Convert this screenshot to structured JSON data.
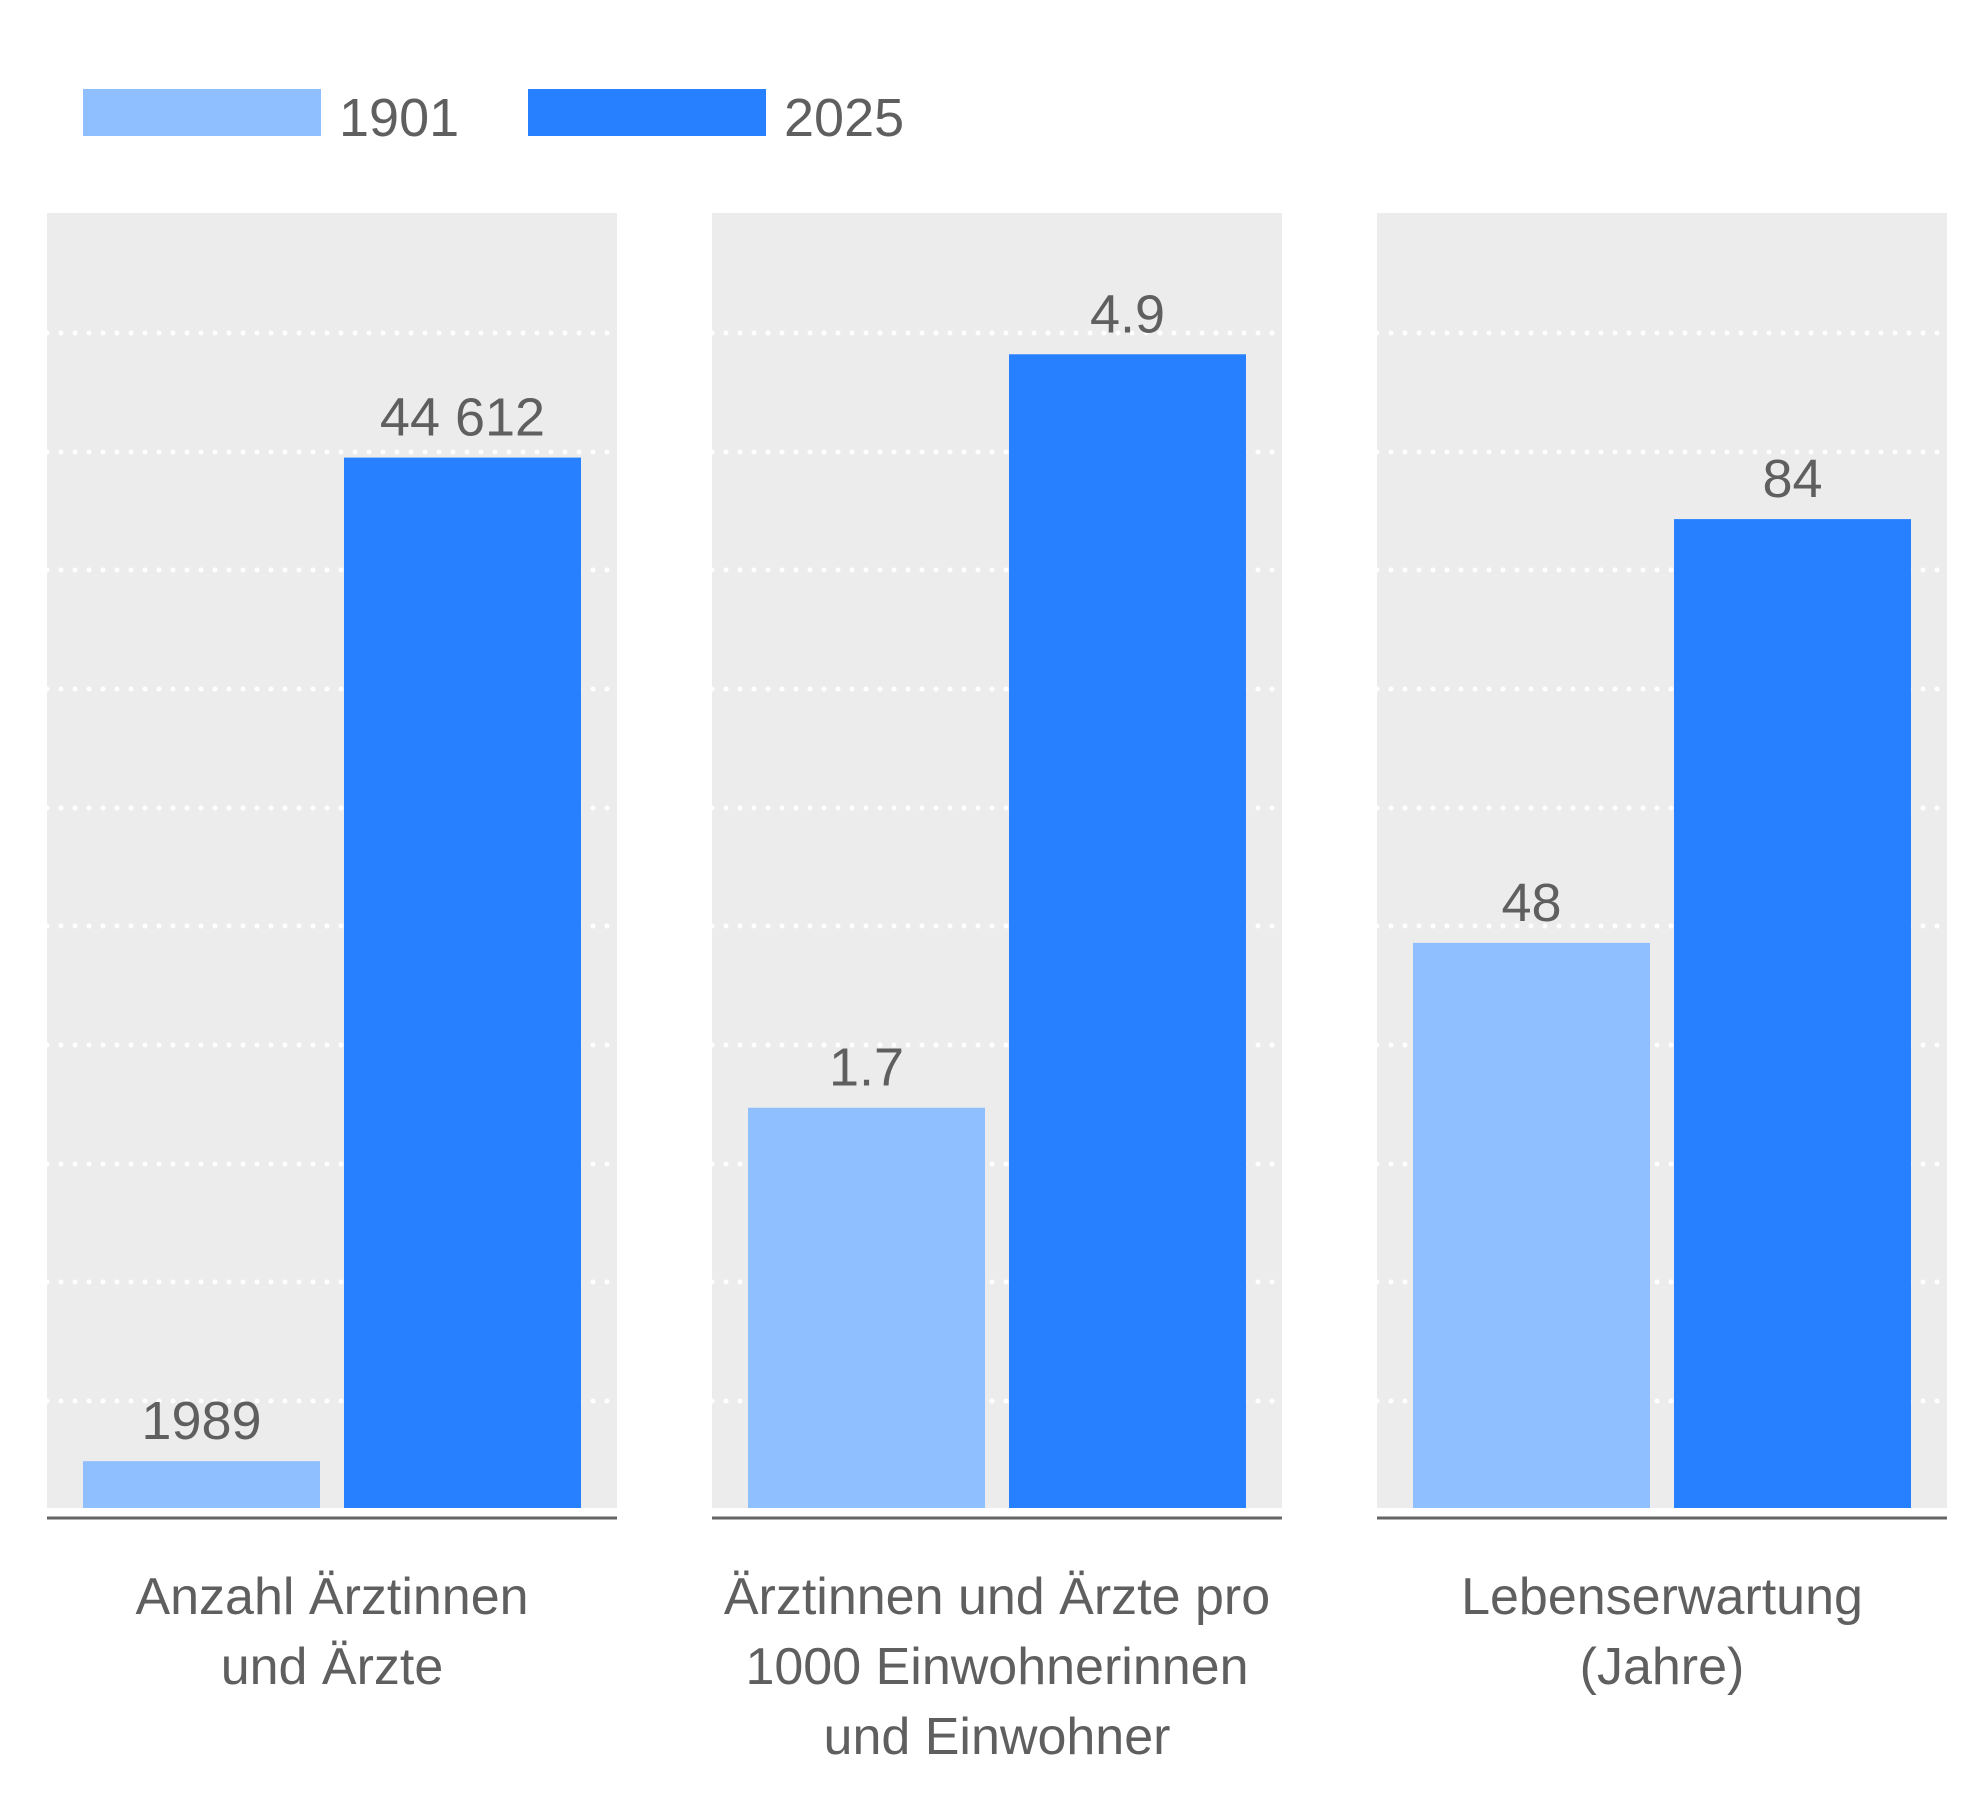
{
  "chart_data": {
    "type": "bar",
    "legend": {
      "placement": "top-left",
      "entries": [
        {
          "name": "1901",
          "color": "#8fbfff"
        },
        {
          "name": "2025",
          "color": "#2780ff"
        }
      ]
    },
    "grid": true,
    "panel_background": "#ececec",
    "panels": [
      {
        "category": [
          "Anzahl Ärztinnen",
          "und Ärzte"
        ],
        "ylim": [
          0,
          55000
        ],
        "series": [
          {
            "name": "1901",
            "value": 1989,
            "label": "1989"
          },
          {
            "name": "2025",
            "value": 44612,
            "label": "44 612"
          }
        ]
      },
      {
        "category": [
          "Ärztinnen und Ärzte pro",
          "1000 Einwohnerinnen",
          "und Einwohner"
        ],
        "ylim": [
          0,
          5.5
        ],
        "series": [
          {
            "name": "1901",
            "value": 1.7,
            "label": "1.7"
          },
          {
            "name": "2025",
            "value": 4.9,
            "label": "4.9"
          }
        ]
      },
      {
        "category": [
          "Lebenserwartung",
          "(Jahre)"
        ],
        "ylim": [
          0,
          110
        ],
        "series": [
          {
            "name": "1901",
            "value": 48,
            "label": "48"
          },
          {
            "name": "2025",
            "value": 84,
            "label": "84"
          }
        ]
      }
    ]
  }
}
